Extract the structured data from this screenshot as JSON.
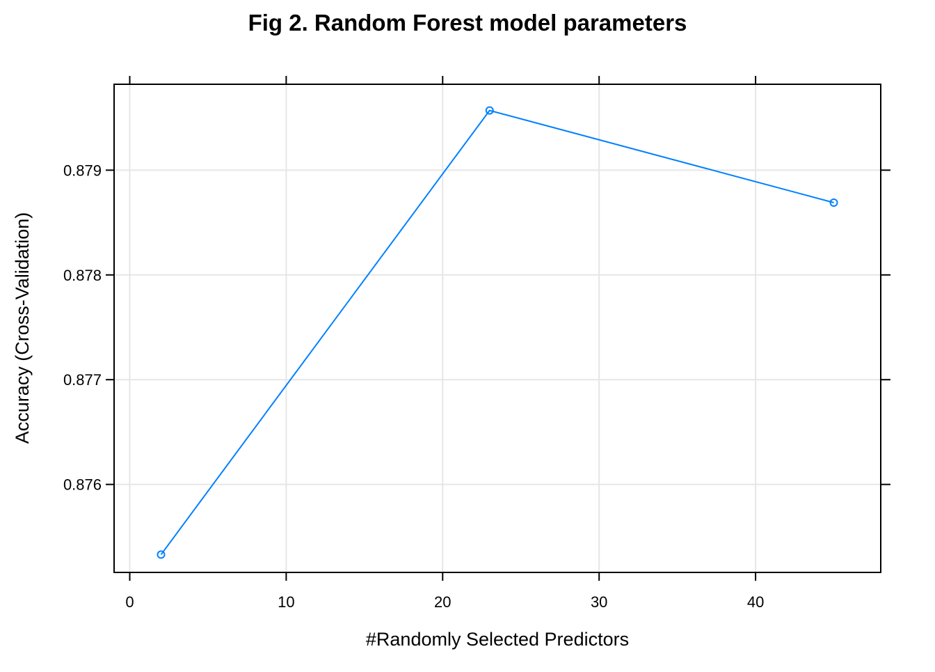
{
  "chart_data": {
    "type": "line",
    "title": "Fig 2. Random Forest model parameters",
    "xlabel": "#Randomly Selected Predictors",
    "ylabel": "Accuracy (Cross-Validation)",
    "x": [
      2,
      23,
      45
    ],
    "series": [
      {
        "values": [
          0.87533,
          0.87957,
          0.87869
        ]
      }
    ],
    "xlim": [
      -1,
      48
    ],
    "ylim": [
      0.87516,
      0.87982
    ],
    "xticks": [
      0,
      10,
      20,
      30,
      40
    ],
    "xtick_labels": [
      "0",
      "10",
      "20",
      "30",
      "40"
    ],
    "yticks": [
      0.876,
      0.877,
      0.878,
      0.879
    ],
    "ytick_labels": [
      "0.876",
      "0.877",
      "0.878",
      "0.879"
    ],
    "grid": true,
    "legend": "none",
    "colors": {
      "line": "#0080ff",
      "grid": "#e6e6e6",
      "frame": "#000000"
    }
  }
}
